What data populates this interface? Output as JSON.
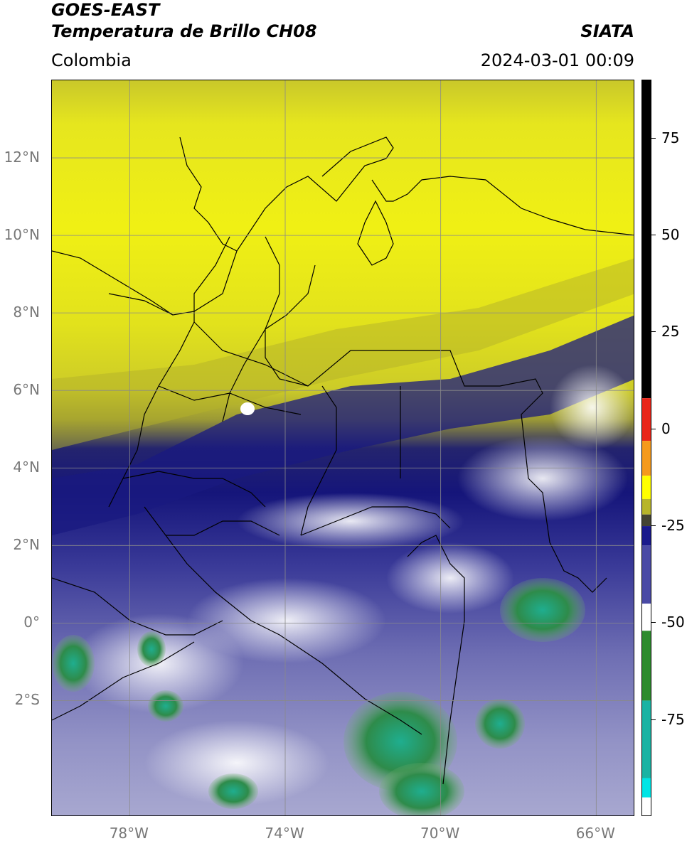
{
  "header": {
    "title_line1": "GOES-EAST",
    "title_line2": "Temperatura de Brillo CH08",
    "source": "SIATA",
    "region": "Colombia",
    "datetime": "2024-03-01 00:09"
  },
  "map": {
    "lon_range": [
      -80,
      -65
    ],
    "lat_range": [
      -5,
      14
    ],
    "lat_ticks": [
      {
        "value": 12,
        "label": "12°N"
      },
      {
        "value": 10,
        "label": "10°N"
      },
      {
        "value": 8,
        "label": "8°N"
      },
      {
        "value": 6,
        "label": "6°N"
      },
      {
        "value": 4,
        "label": "4°N"
      },
      {
        "value": 2,
        "label": "2°N"
      },
      {
        "value": 0,
        "label": "0°"
      },
      {
        "value": -2,
        "label": "2°S"
      }
    ],
    "lon_ticks": [
      {
        "value": -78,
        "label": "78°W"
      },
      {
        "value": -74,
        "label": "74°W"
      },
      {
        "value": -70,
        "label": "70°W"
      },
      {
        "value": -66,
        "label": "66°W"
      }
    ],
    "grid": true
  },
  "colorbar": {
    "range": [
      -100,
      90
    ],
    "ticks": [
      {
        "value": 75,
        "label": "75"
      },
      {
        "value": 50,
        "label": "50"
      },
      {
        "value": 25,
        "label": "25"
      },
      {
        "value": 0,
        "label": "0"
      },
      {
        "value": -25,
        "label": "-25"
      },
      {
        "value": -50,
        "label": "-50"
      },
      {
        "value": -75,
        "label": "-75"
      }
    ],
    "colors": {
      "warm_black": "#000000",
      "red": "#e8261a",
      "orange": "#f59a1c",
      "yellow": "#ffff00",
      "olive": "#b7b52a",
      "dark_olive": "#444433",
      "navy": "#1a1a8c",
      "blue": "#4a4aa5",
      "white": "#ffffff",
      "green": "#2e8b2e",
      "teal": "#1bb3a3",
      "cyan": "#00e5e5"
    }
  }
}
